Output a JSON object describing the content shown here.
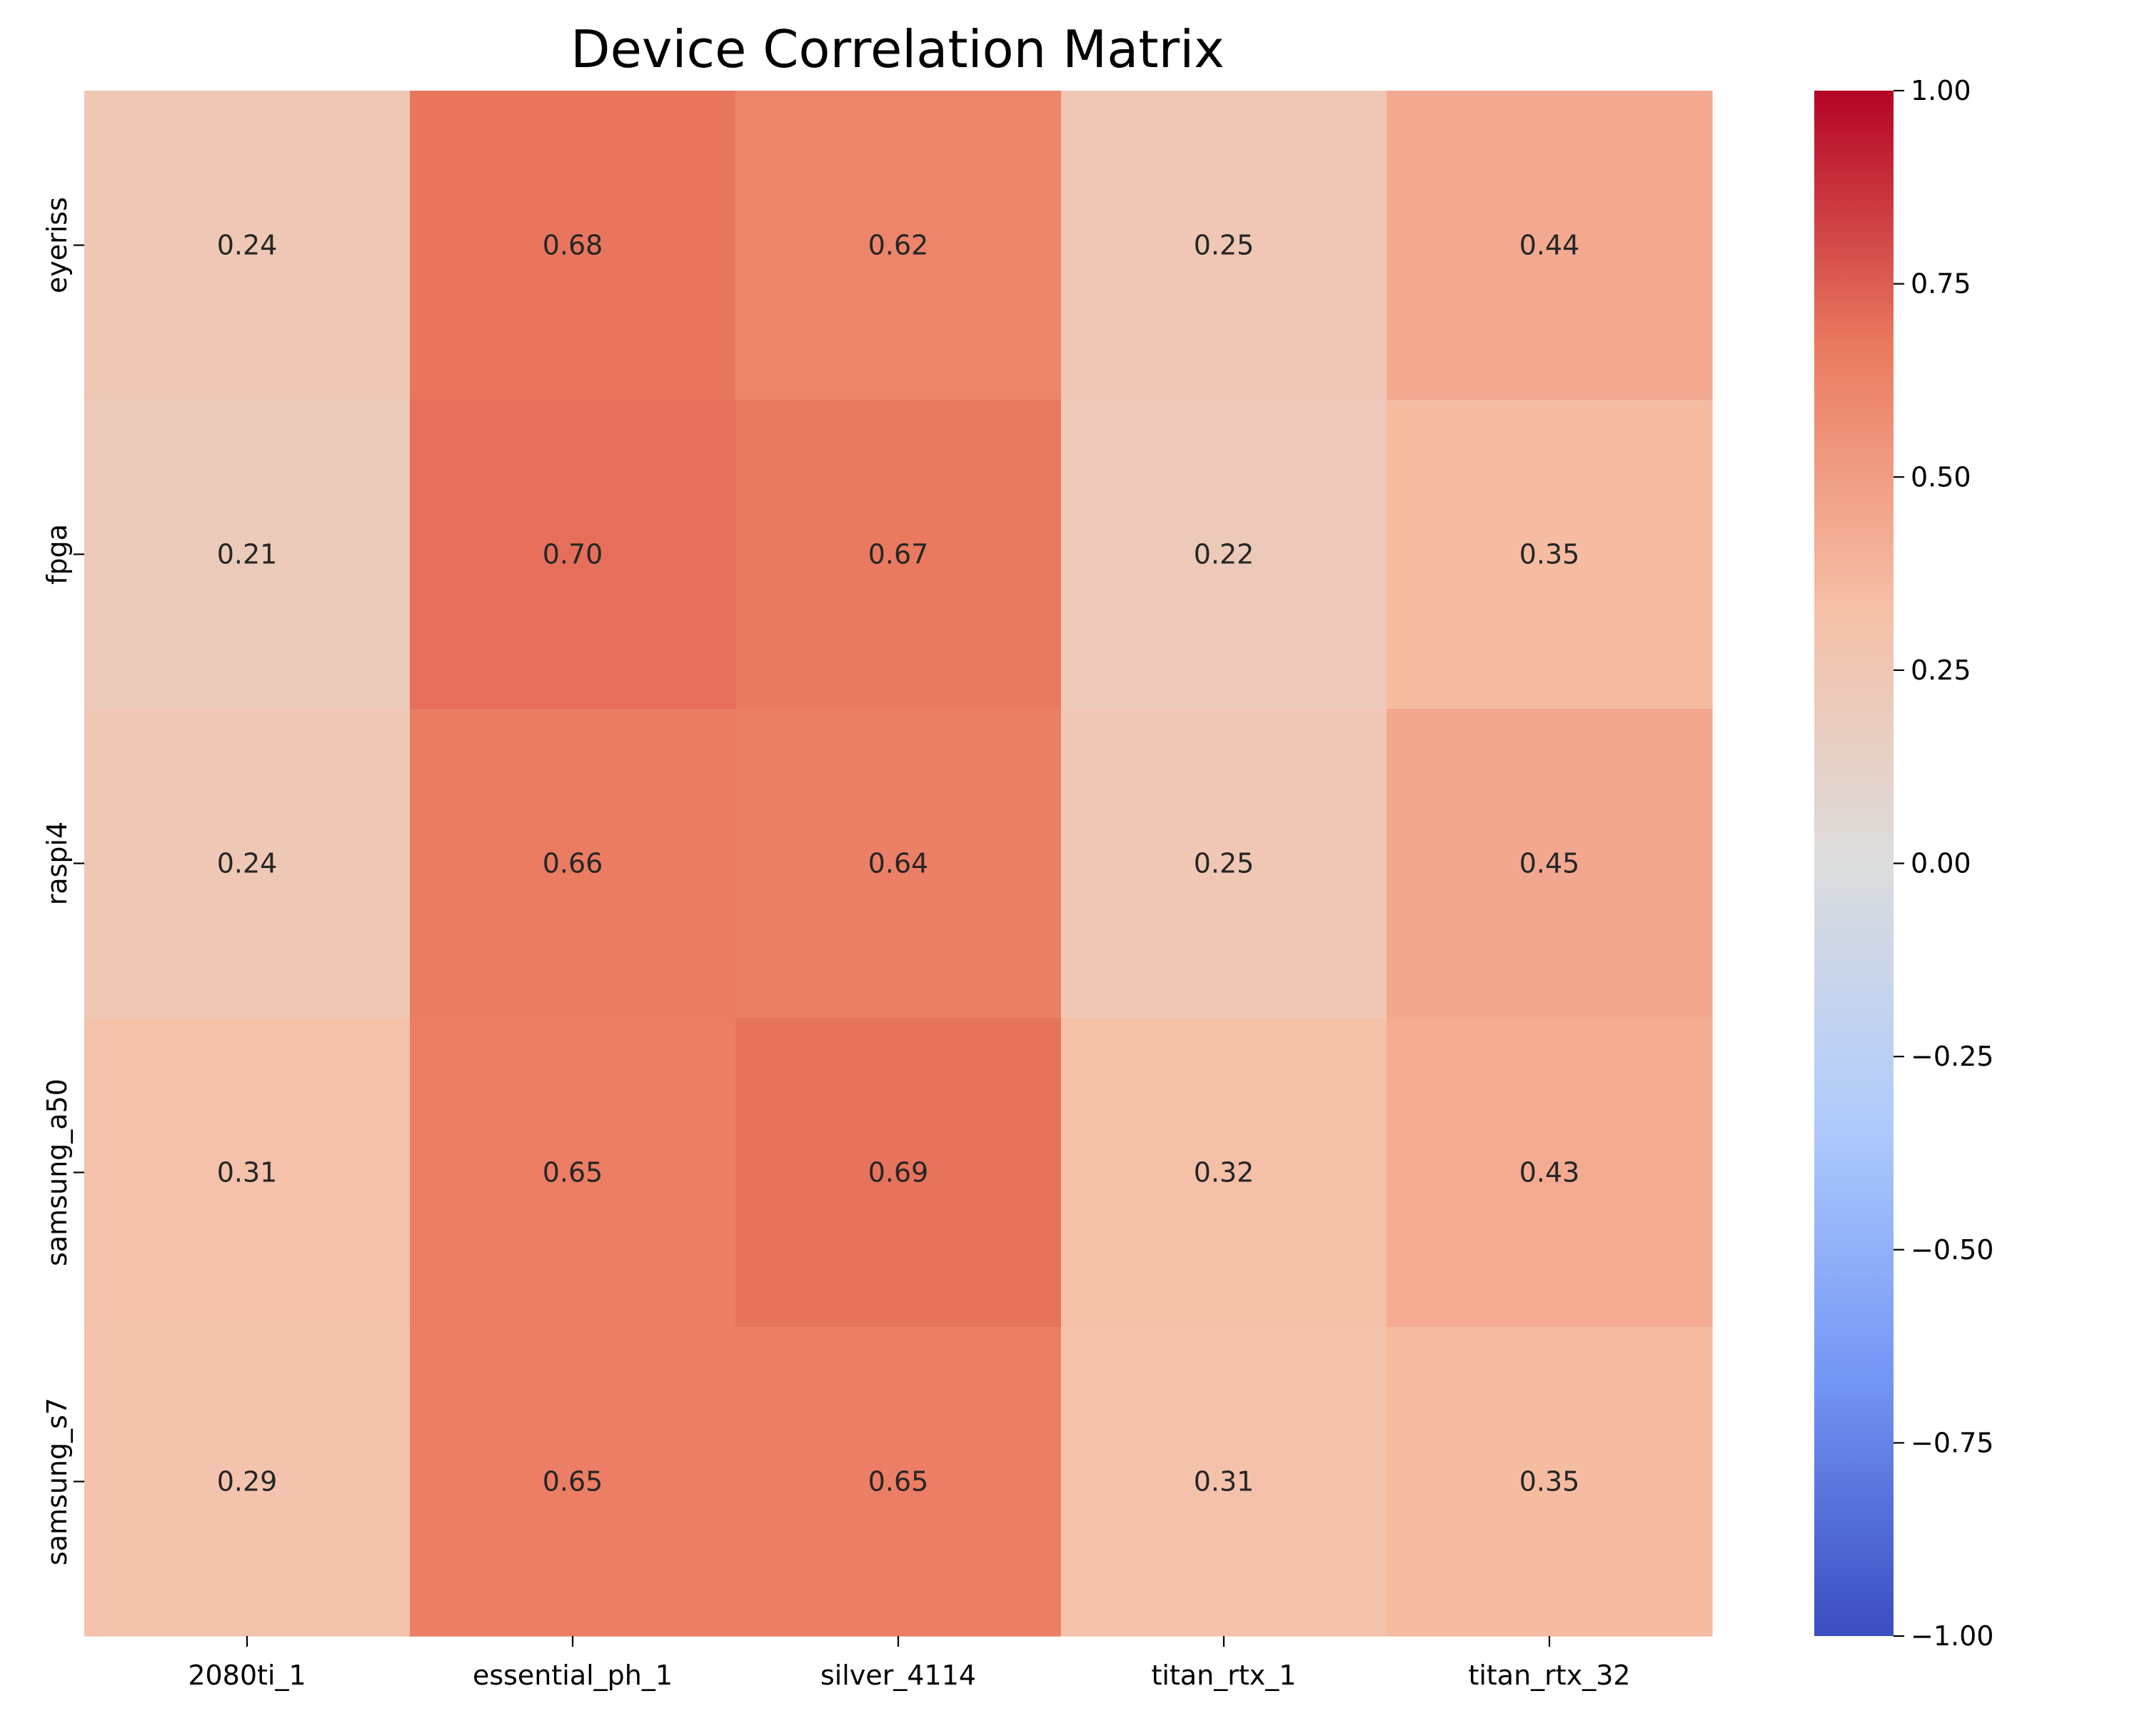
{
  "chart_data": {
    "type": "heatmap",
    "title": "Device Correlation Matrix",
    "xlabel": "",
    "ylabel": "",
    "x_categories": [
      "2080ti_1",
      "essential_ph_1",
      "silver_4114",
      "titan_rtx_1",
      "titan_rtx_32"
    ],
    "y_categories": [
      "eyeriss",
      "fpga",
      "raspi4",
      "samsung_a50",
      "samsung_s7"
    ],
    "values": [
      [
        0.24,
        0.68,
        0.62,
        0.25,
        0.44
      ],
      [
        0.21,
        0.7,
        0.67,
        0.22,
        0.35
      ],
      [
        0.24,
        0.66,
        0.64,
        0.25,
        0.45
      ],
      [
        0.31,
        0.65,
        0.69,
        0.32,
        0.43
      ],
      [
        0.29,
        0.65,
        0.65,
        0.31,
        0.35
      ]
    ],
    "value_labels": [
      [
        "0.24",
        "0.68",
        "0.62",
        "0.25",
        "0.44"
      ],
      [
        "0.21",
        "0.70",
        "0.67",
        "0.22",
        "0.35"
      ],
      [
        "0.24",
        "0.66",
        "0.64",
        "0.25",
        "0.45"
      ],
      [
        "0.31",
        "0.65",
        "0.69",
        "0.32",
        "0.43"
      ],
      [
        "0.29",
        "0.65",
        "0.65",
        "0.31",
        "0.35"
      ]
    ],
    "colorbar": {
      "range": [
        -1.0,
        1.0
      ],
      "ticks": [
        1.0,
        0.75,
        0.5,
        0.25,
        0.0,
        -0.25,
        -0.5,
        -0.75,
        -1.0
      ],
      "tick_labels": [
        "1.00",
        "0.75",
        "0.50",
        "0.25",
        "0.00",
        "−0.25",
        "−0.50",
        "−0.75",
        "−1.00"
      ],
      "colormap": "coolwarm",
      "color_stops": [
        "#3b4cc0",
        "#7396f5",
        "#b0cbfc",
        "#dcdddd",
        "#f6bfa6",
        "#ea7b60",
        "#b40426"
      ]
    },
    "grid": false,
    "legend": "colorbar-right"
  }
}
